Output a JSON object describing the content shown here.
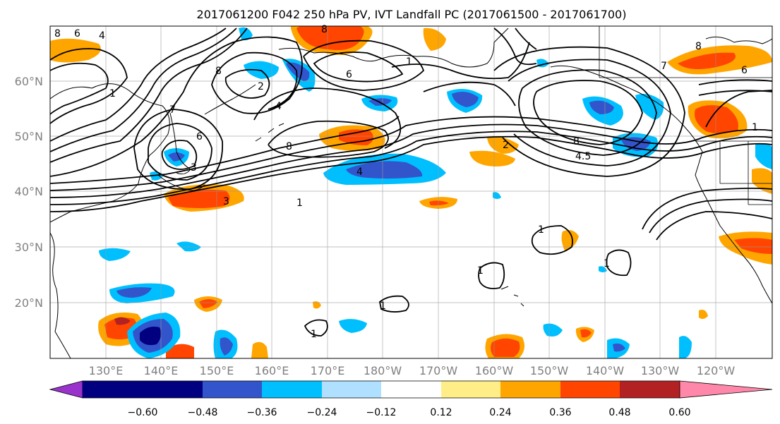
{
  "title": "2017061200 F042 250 hPa PV, IVT Landfall PC (2017061500 - 2017061700)",
  "map": {
    "lat_labels": [
      "60°N",
      "50°N",
      "40°N",
      "30°N",
      "20°N"
    ],
    "lon_labels": [
      "130°E",
      "140°E",
      "150°E",
      "160°E",
      "170°E",
      "180°W",
      "170°W",
      "160°W",
      "150°W",
      "140°W",
      "130°W",
      "120°W"
    ],
    "contour_labels": [
      "8",
      "6",
      "4",
      "1",
      "8",
      "2",
      "8",
      "6",
      "1",
      "7",
      "6",
      "4",
      "8",
      "8",
      "4.5",
      "3",
      "4",
      "1",
      "2",
      "3",
      "1",
      "1",
      "1",
      "1",
      "1",
      "7",
      "6",
      "8",
      "1"
    ]
  },
  "colorbar": {
    "colors": [
      "#9933cc",
      "#000080",
      "#3355cc",
      "#00bfff",
      "#b0e0ff",
      "#ffffff",
      "#ffee88",
      "#ffa500",
      "#ff4500",
      "#b22222",
      "#ff88aa"
    ],
    "ticks": [
      "−0.60",
      "−0.48",
      "−0.36",
      "−0.24",
      "−0.12",
      "0.12",
      "0.24",
      "0.36",
      "0.48",
      "0.60"
    ]
  }
}
